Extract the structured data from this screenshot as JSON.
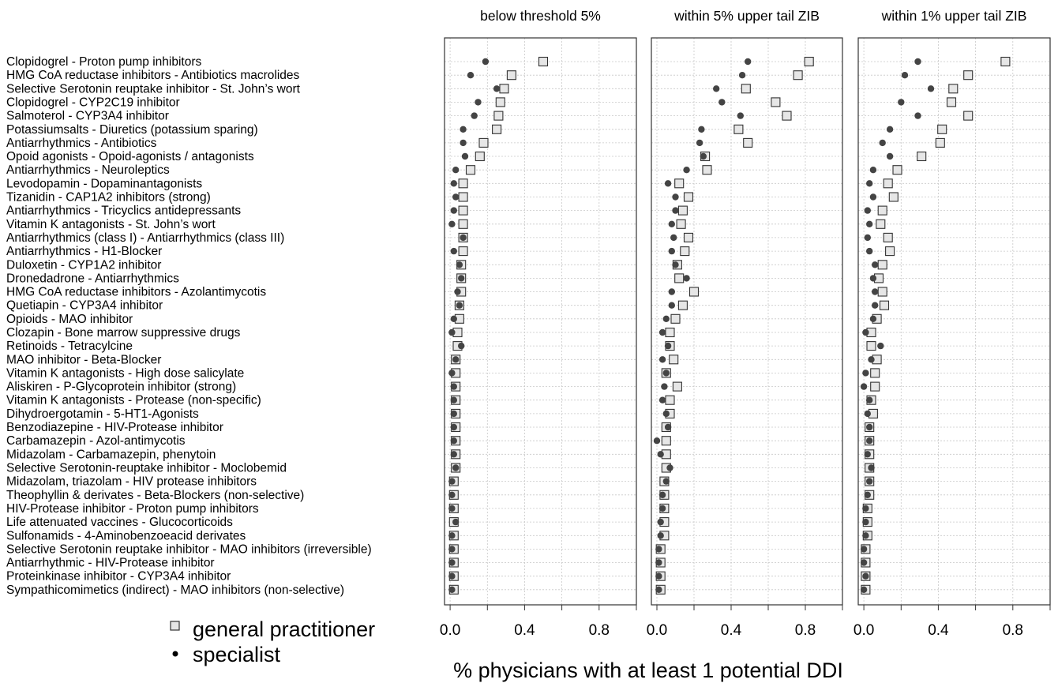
{
  "chart_data": {
    "type": "scatter",
    "xlabel": "% physicians with at least 1 potential DDI",
    "panel_titles": [
      "below threshold 5%",
      "within 5% upper tail ZIB",
      "within 1% upper tail ZIB"
    ],
    "xlim": [
      -0.03,
      1.0
    ],
    "x_ticks": [
      0,
      0.2,
      0.4,
      0.6,
      0.8,
      1.0
    ],
    "x_tick_labels": [
      "0.0",
      "",
      "0.4",
      "",
      "0.8",
      ""
    ],
    "grid": true,
    "legend_position": "bottom-left",
    "legend": [
      {
        "symbol": "square",
        "label": "general practitioner"
      },
      {
        "symbol": "dot",
        "label": "specialist"
      }
    ],
    "categories": [
      "Clopidogrel - Proton pump inhibitors",
      "HMG CoA reductase inhibitors  - Antibiotics macrolides",
      "Selective Serotonin reuptake inhibitor  - St. John’s wort",
      "Clopidogrel  - CYP2C19 inhibitor",
      "Salmoterol  - CYP3A4 inhibitor",
      "Potassiumsalts  - Diuretics (potassium sparing)",
      "Antiarrhythmics  - Antibiotics",
      "Opoid agonists  - Opoid-agonists / antagonists",
      "Antiarrhythmics  - Neuroleptics",
      "Levodopamin  - Dopaminantagonists",
      "Tizanidin  - CAP1A2 inhibitors (strong)",
      "Antiarrhythmics  - Tricyclics antidepressants",
      "Vitamin K antagonists  - St. John’s wort",
      "Antiarrhythmics (class I)  - Antiarrhythmics (class III)",
      "Antiarrhythmics  - H1-Blocker",
      "Duloxetin  - CYP1A2 inhibitor",
      "Dronedadrone  - Antiarrhythmics",
      "HMG CoA reductase inhibitors  - Azolantimycotis",
      "Quetiapin  - CYP3A4 inhibitor",
      "Opioids  - MAO inhibitor",
      "Clozapin  - Bone marrow suppressive drugs",
      "Retinoids  - Tetracylcine",
      "MAO inhibitor  - Beta-Blocker",
      "Vitamin K antagonists - High dose salicylate",
      "Aliskiren  - P-Glycoprotein inhibitor (strong)",
      "Vitamin K antagonists - Protease (non-specific)",
      "Dihydroergotamin  - 5-HT1-Agonists",
      "Benzodiazepine  - HIV-Protease inhibitor",
      "Carbamazepin  - Azol-antimycotis",
      "Midazolam  - Carbamazepin, phenytoin",
      "Selective Serotonin-reuptake inhibitor  - Moclobemid",
      "Midazolam, triazolam  - HIV protease inhibitors",
      "Theophyllin & derivates  - Beta-Blockers (non-selective)",
      "HIV-Protease inhibitor  - Proton pump inhibitors",
      "Life attenuated vaccines  - Glucocorticoids",
      "Sulfonamids  - 4-Aminobenzoeacid derivates",
      "Selective Serotonin reuptake inhibitor  - MAO inhibitors (irreversible)",
      "Antiarrhythmic - HIV-Protease inhibitor",
      "Proteinkinase inhibitor  - CYP3A4 inhibitor",
      "Sympathicomimetics (indirect) - MAO inhibitors (non-selective)"
    ],
    "panels": [
      {
        "title": "below threshold 5%",
        "series": [
          {
            "name": "general practitioner",
            "marker": "square",
            "values": [
              0.5,
              0.33,
              0.29,
              0.27,
              0.26,
              0.25,
              0.18,
              0.16,
              0.11,
              0.07,
              0.07,
              0.07,
              0.07,
              0.07,
              0.07,
              0.06,
              0.06,
              0.06,
              0.05,
              0.05,
              0.04,
              0.04,
              0.03,
              0.03,
              0.03,
              0.03,
              0.03,
              0.03,
              0.03,
              0.03,
              0.03,
              0.02,
              0.02,
              0.02,
              0.02,
              0.02,
              0.02,
              0.02,
              0.02,
              0.02
            ]
          },
          {
            "name": "specialist",
            "marker": "dot",
            "values": [
              0.19,
              0.11,
              0.25,
              0.15,
              0.13,
              0.07,
              0.07,
              0.08,
              0.03,
              0.02,
              0.03,
              0.02,
              0.01,
              0.07,
              0.02,
              0.05,
              0.06,
              0.04,
              0.05,
              0.02,
              0.01,
              0.06,
              0.03,
              0.01,
              0.02,
              0.02,
              0.02,
              0.02,
              0.02,
              0.02,
              0.03,
              0.01,
              0.01,
              0.01,
              0.03,
              0.01,
              0.01,
              0.01,
              0.01,
              0.01
            ]
          }
        ]
      },
      {
        "title": "within 5% upper tail ZIB",
        "series": [
          {
            "name": "general practitioner",
            "marker": "square",
            "values": [
              0.82,
              0.76,
              0.48,
              0.64,
              0.7,
              0.44,
              0.49,
              0.26,
              0.27,
              0.12,
              0.17,
              0.14,
              0.13,
              0.17,
              0.15,
              0.11,
              0.12,
              0.2,
              0.14,
              0.1,
              0.07,
              0.07,
              0.09,
              0.05,
              0.11,
              0.07,
              0.07,
              0.05,
              0.05,
              0.05,
              0.05,
              0.04,
              0.04,
              0.04,
              0.04,
              0.04,
              0.02,
              0.02,
              0.02,
              0.02
            ]
          },
          {
            "name": "specialist",
            "marker": "dot",
            "values": [
              0.49,
              0.46,
              0.32,
              0.35,
              0.45,
              0.24,
              0.23,
              0.25,
              0.16,
              0.06,
              0.1,
              0.1,
              0.08,
              0.09,
              0.08,
              0.1,
              0.16,
              0.08,
              0.08,
              0.05,
              0.03,
              0.06,
              0.03,
              0.05,
              0.04,
              0.03,
              0.05,
              0.06,
              0.0,
              0.02,
              0.07,
              0.05,
              0.03,
              0.03,
              0.02,
              0.02,
              0.01,
              0.01,
              0.01,
              0.01
            ]
          }
        ]
      },
      {
        "title": "within 1% upper tail ZIB",
        "series": [
          {
            "name": "general practitioner",
            "marker": "square",
            "values": [
              0.76,
              0.56,
              0.48,
              0.47,
              0.56,
              0.42,
              0.41,
              0.31,
              0.18,
              0.13,
              0.16,
              0.1,
              0.09,
              0.13,
              0.14,
              0.1,
              0.08,
              0.1,
              0.11,
              0.07,
              0.04,
              0.04,
              0.07,
              0.06,
              0.06,
              0.04,
              0.05,
              0.03,
              0.03,
              0.03,
              0.03,
              0.03,
              0.03,
              0.02,
              0.02,
              0.02,
              0.01,
              0.01,
              0.01,
              0.01
            ]
          },
          {
            "name": "specialist",
            "marker": "dot",
            "values": [
              0.29,
              0.22,
              0.36,
              0.2,
              0.29,
              0.14,
              0.1,
              0.14,
              0.05,
              0.03,
              0.05,
              0.02,
              0.03,
              0.02,
              0.03,
              0.06,
              0.05,
              0.06,
              0.06,
              0.05,
              0.01,
              0.09,
              0.04,
              0.01,
              0.0,
              0.03,
              0.02,
              0.03,
              0.03,
              0.02,
              0.04,
              0.03,
              0.02,
              0.01,
              0.01,
              0.01,
              0.0,
              0.0,
              0.01,
              0.0
            ]
          }
        ]
      }
    ]
  }
}
